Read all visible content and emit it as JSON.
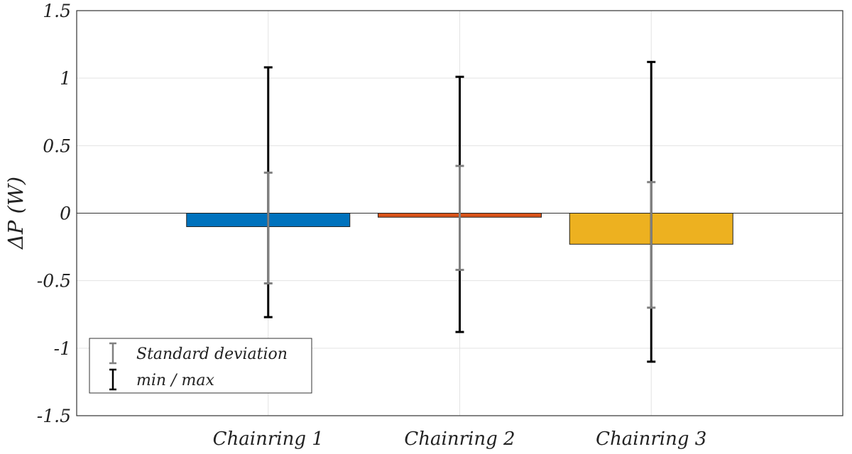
{
  "chart_data": {
    "type": "bar",
    "title": "",
    "xlabel": "",
    "ylabel": "ΔP (W)",
    "ylim": [
      -1.5,
      1.5
    ],
    "yticks": [
      1.5,
      1,
      0.5,
      0,
      -0.5,
      -1,
      -1.5
    ],
    "ytick_labels": [
      "1.5",
      "1",
      "0.5",
      "0",
      "-0.5",
      "-1",
      "-1.5"
    ],
    "grid": true,
    "categories": [
      "Chainring 1",
      "Chainring 2",
      "Chainring 3"
    ],
    "values": [
      -0.1,
      -0.03,
      -0.23
    ],
    "bar_colors": [
      "#0072BD",
      "#D95319",
      "#EDB120"
    ],
    "std_range": [
      [
        -0.52,
        0.3
      ],
      [
        -0.42,
        0.35
      ],
      [
        -0.7,
        0.23
      ]
    ],
    "min_max": [
      [
        -0.77,
        1.08
      ],
      [
        -0.88,
        1.01
      ],
      [
        -1.1,
        1.12
      ]
    ],
    "std_color": "#808080",
    "minmax_color": "#000000",
    "legend": {
      "position": "bottom-left",
      "entries": [
        {
          "label": "Standard deviation",
          "color": "#808080"
        },
        {
          "label": "min / max",
          "color": "#000000"
        }
      ]
    }
  }
}
